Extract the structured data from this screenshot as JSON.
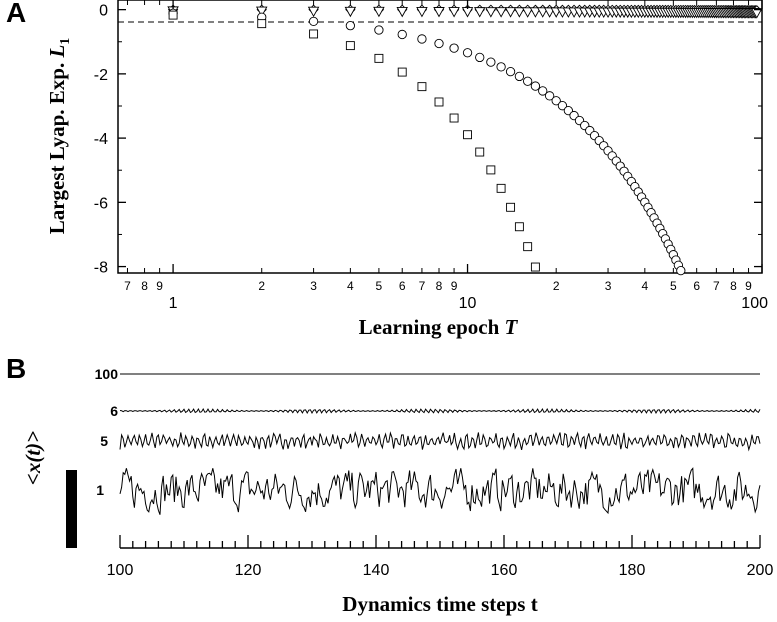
{
  "chart_data": [
    {
      "panel": "A",
      "type": "scatter",
      "xlabel_main": "Learning epoch",
      "xlabel_var": "T",
      "ylabel_main": "Largest Lyap. Exp.",
      "ylabel_var": "L",
      "ylabel_sub": "1",
      "xscale": "log",
      "xlim": [
        0.65,
        100
      ],
      "ylim": [
        -8.2,
        0.3
      ],
      "x_major_ticks": [
        1,
        10,
        100
      ],
      "x_minor_ticks": [
        {
          "v": 0.7,
          "label": "7"
        },
        {
          "v": 0.8,
          "label": "8"
        },
        {
          "v": 0.9,
          "label": "9"
        },
        {
          "v": 2,
          "label": "2"
        },
        {
          "v": 3,
          "label": "3"
        },
        {
          "v": 4,
          "label": "4"
        },
        {
          "v": 5,
          "label": "5"
        },
        {
          "v": 6,
          "label": "6"
        },
        {
          "v": 7,
          "label": "7"
        },
        {
          "v": 8,
          "label": "8"
        },
        {
          "v": 9,
          "label": "9"
        },
        {
          "v": 20,
          "label": "2"
        },
        {
          "v": 30,
          "label": "3"
        },
        {
          "v": 40,
          "label": "4"
        },
        {
          "v": 50,
          "label": "5"
        },
        {
          "v": 60,
          "label": "6"
        },
        {
          "v": 70,
          "label": "7"
        },
        {
          "v": 80,
          "label": "8"
        },
        {
          "v": 90,
          "label": "9"
        }
      ],
      "y_ticks": [
        0,
        -2,
        -4,
        -6,
        -8
      ],
      "zero_line": true,
      "series": [
        {
          "marker": "diamond",
          "a": 0.0002,
          "b": 1.0,
          "x_end": 96
        },
        {
          "marker": "triangle",
          "a": 0.0385,
          "b": 0.2,
          "x_end": 96
        },
        {
          "marker": "circle",
          "a": 0.1116,
          "b": 1.08,
          "x_end": 93
        },
        {
          "marker": "square",
          "a": 0.17,
          "b": 1.36,
          "x_end": 43
        }
      ],
      "fits": [
        {
          "a": 0.06,
          "b": 1.45,
          "x_start": 54,
          "x_end": 97
        },
        {
          "a": 0.165,
          "b": 1.2,
          "x_start": 32,
          "x_end": 96
        },
        {
          "a": 0.35,
          "b": 1.1,
          "x_start": 19,
          "x_end": 47
        }
      ]
    },
    {
      "panel": "B",
      "type": "line",
      "xlabel": "Dynamics time steps t",
      "ylabel": "<x(t)>",
      "xlim": [
        100,
        200
      ],
      "x_ticks": [
        100,
        120,
        140,
        160,
        180,
        200
      ],
      "x_minor_step": 2,
      "traces": [
        {
          "label": "100",
          "amplitude": 0
        },
        {
          "label": "6",
          "amplitude": 2
        },
        {
          "label": "5",
          "amplitude": 9
        },
        {
          "label": "1",
          "amplitude": 22
        }
      ]
    }
  ]
}
